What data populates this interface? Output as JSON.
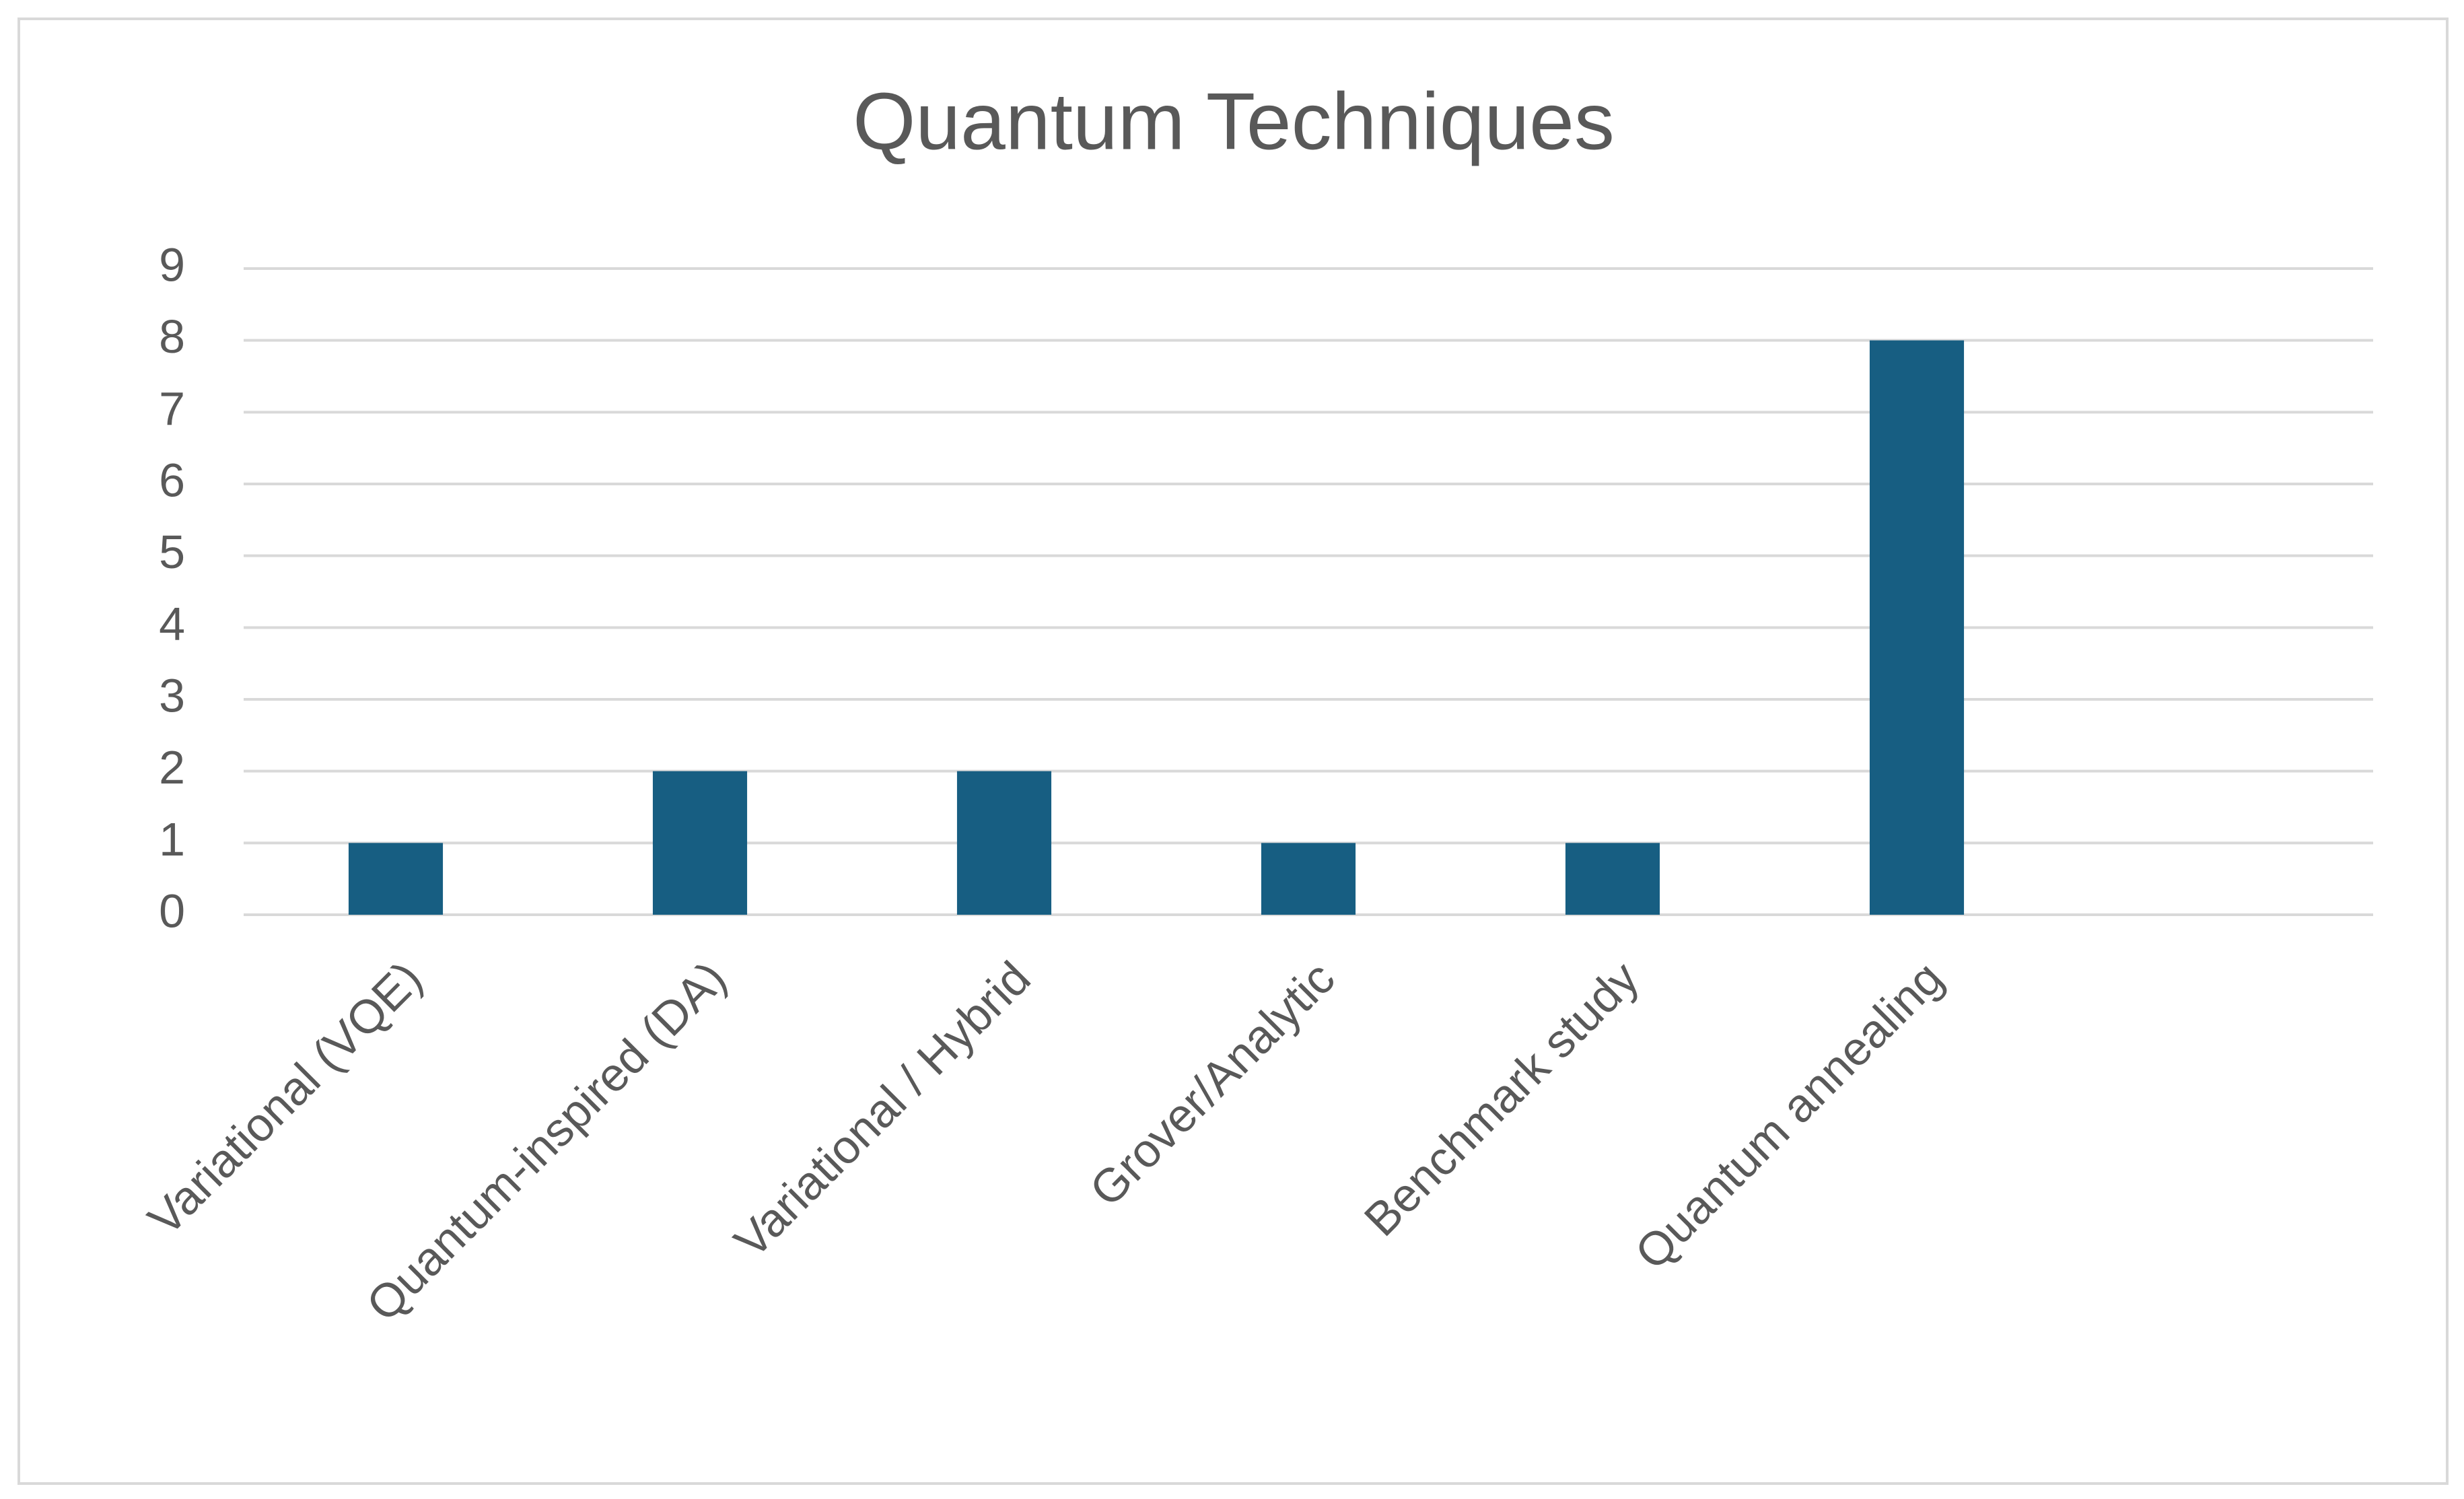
{
  "chart_data": {
    "type": "bar",
    "title": "Quantum Techniques",
    "categories": [
      "Variational (VQE)",
      "Quantum-inspired (DA)",
      "Variational / Hybrid",
      "Grover/Analytic",
      "Benchmark study",
      "Quantum annealing",
      null
    ],
    "values": [
      1,
      2,
      2,
      1,
      1,
      8,
      null
    ],
    "color": "#175e82",
    "ylim": [
      0,
      9
    ],
    "yticks": [
      0,
      1,
      2,
      3,
      4,
      5,
      6,
      7,
      8,
      9
    ],
    "grid": true
  }
}
